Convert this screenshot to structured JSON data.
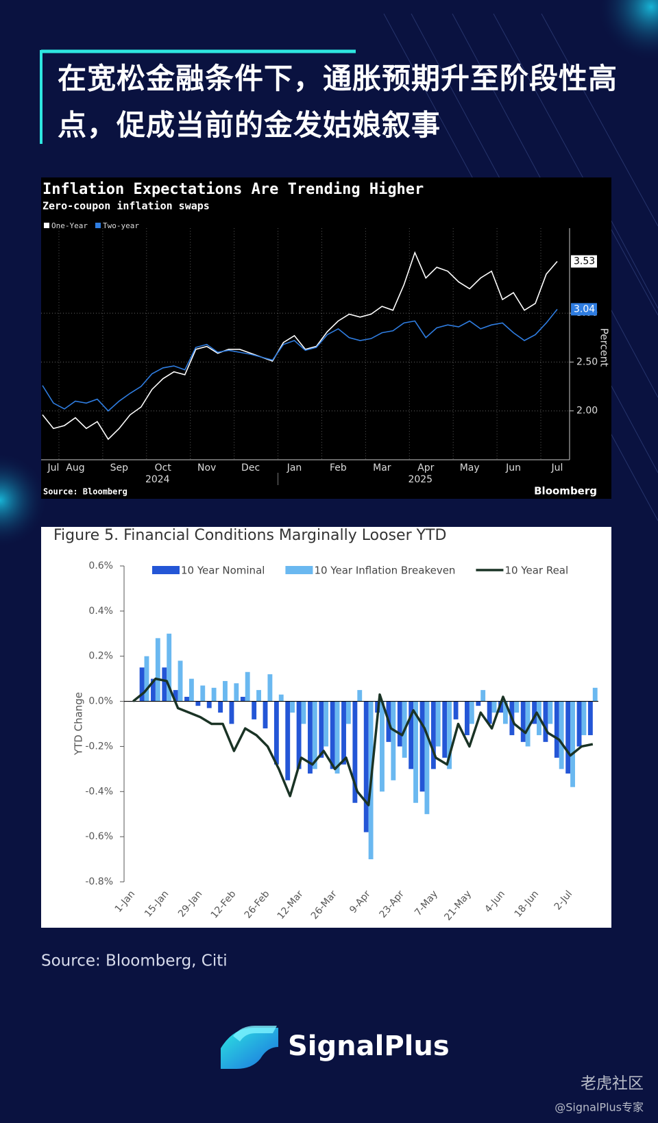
{
  "headline": "在宽松金融条件下，通胀预期升至阶段性高点，促成当前的金发姑娘叙事",
  "chart_data": [
    {
      "type": "line",
      "title": "Inflation Expectations Are Trending Higher",
      "subtitle": "Zero-coupon inflation swaps",
      "y_label": "Percent",
      "categories": [
        "Jul",
        null,
        "Aug",
        null,
        null,
        null,
        "Sep",
        null,
        null,
        null,
        "Oct",
        null,
        null,
        null,
        "Nov",
        null,
        null,
        null,
        "Dec",
        null,
        null,
        null,
        "Jan",
        null,
        null,
        null,
        "Feb",
        null,
        null,
        null,
        "Mar",
        null,
        null,
        null,
        "Apr",
        null,
        null,
        null,
        "May",
        null,
        null,
        null,
        "Jun",
        null,
        null,
        null,
        "Jul",
        null
      ],
      "xgroups": [
        "2024",
        "2025"
      ],
      "series": [
        {
          "name": "One-Year",
          "color": "#ffffff",
          "values": [
            1.96,
            1.82,
            1.85,
            1.93,
            1.82,
            1.89,
            1.71,
            1.82,
            1.96,
            2.04,
            2.22,
            2.33,
            2.4,
            2.37,
            2.63,
            2.66,
            2.59,
            2.63,
            2.63,
            2.59,
            2.55,
            2.51,
            2.7,
            2.77,
            2.63,
            2.66,
            2.81,
            2.92,
            2.99,
            2.96,
            2.99,
            3.07,
            3.03,
            3.29,
            3.62,
            3.36,
            3.47,
            3.43,
            3.32,
            3.25,
            3.36,
            3.43,
            3.14,
            3.21,
            3.03,
            3.1,
            3.4,
            3.53
          ],
          "value_labels": [
            null,
            null,
            null,
            null,
            null,
            null,
            null,
            null,
            null,
            null,
            null,
            null,
            null,
            null,
            null,
            null,
            null,
            null,
            null,
            null,
            null,
            null,
            null,
            null,
            null,
            null,
            null,
            null,
            null,
            null,
            null,
            null,
            null,
            null,
            null,
            null,
            null,
            null,
            null,
            null,
            null,
            null,
            null,
            null,
            null,
            null,
            null,
            "3.53"
          ]
        },
        {
          "name": "Two-year",
          "color": "#2f7de1",
          "values": [
            2.26,
            2.08,
            2.02,
            2.1,
            2.08,
            2.12,
            2.0,
            2.1,
            2.18,
            2.25,
            2.38,
            2.44,
            2.46,
            2.42,
            2.65,
            2.68,
            2.6,
            2.62,
            2.6,
            2.58,
            2.55,
            2.52,
            2.68,
            2.72,
            2.62,
            2.65,
            2.78,
            2.84,
            2.75,
            2.72,
            2.74,
            2.8,
            2.82,
            2.9,
            2.92,
            2.75,
            2.85,
            2.88,
            2.86,
            2.92,
            2.84,
            2.88,
            2.9,
            2.8,
            2.72,
            2.78,
            2.9,
            3.04
          ],
          "value_labels": [
            null,
            null,
            null,
            null,
            null,
            null,
            null,
            null,
            null,
            null,
            null,
            null,
            null,
            null,
            null,
            null,
            null,
            null,
            null,
            null,
            null,
            null,
            null,
            null,
            null,
            null,
            null,
            null,
            null,
            null,
            null,
            null,
            null,
            null,
            null,
            null,
            null,
            null,
            null,
            null,
            null,
            null,
            null,
            null,
            null,
            null,
            null,
            "3.04"
          ]
        }
      ],
      "ylim": [
        1.5,
        3.8
      ],
      "yticks": [
        {
          "value": 2,
          "label": "2.00"
        },
        {
          "value": 2.5,
          "label": "2.50"
        },
        {
          "value": 3,
          "label": "3.00"
        }
      ],
      "grid": true,
      "source": "Source: Bloomberg",
      "brand": "Bloomberg"
    },
    {
      "type": "bar",
      "title": "Figure 5. Financial Conditions Marginally Looser YTD",
      "y_label": "YTD Change",
      "categories": [
        "1-Jan",
        null,
        null,
        "15-Jan",
        null,
        null,
        "29-Jan",
        null,
        null,
        "12-Feb",
        null,
        null,
        "26-Feb",
        null,
        null,
        "12-Mar",
        null,
        null,
        "26-Mar",
        null,
        null,
        "9-Apr",
        null,
        null,
        "23-Apr",
        null,
        null,
        "7-May",
        null,
        null,
        "21-May",
        null,
        null,
        "4-Jun",
        null,
        null,
        "18-Jun",
        null,
        null,
        "2-Jul",
        null,
        null
      ],
      "series": [
        {
          "name": "10 Year Nominal",
          "type": "bar",
          "color": "#2456d6",
          "values": [
            0.0,
            0.15,
            0.1,
            0.15,
            0.05,
            0.02,
            -0.02,
            -0.03,
            -0.05,
            -0.1,
            0.02,
            -0.08,
            -0.12,
            -0.28,
            -0.35,
            -0.3,
            -0.32,
            -0.25,
            -0.3,
            -0.28,
            -0.45,
            -0.58,
            -0.05,
            -0.18,
            -0.2,
            -0.3,
            -0.4,
            -0.3,
            -0.25,
            -0.08,
            -0.15,
            -0.02,
            -0.1,
            -0.05,
            -0.15,
            -0.18,
            -0.1,
            -0.18,
            -0.25,
            -0.32,
            -0.2,
            -0.15
          ]
        },
        {
          "name": "10 Year Inflation Breakeven",
          "type": "bar",
          "color": "#6ab8f0",
          "values": [
            0.0,
            0.2,
            0.28,
            0.3,
            0.18,
            0.1,
            0.07,
            0.06,
            0.09,
            0.08,
            0.13,
            0.05,
            0.12,
            0.03,
            -0.05,
            -0.1,
            -0.3,
            -0.2,
            -0.32,
            -0.1,
            0.05,
            -0.7,
            -0.4,
            -0.35,
            -0.25,
            -0.45,
            -0.5,
            -0.2,
            -0.3,
            0.0,
            -0.1,
            0.05,
            -0.05,
            -0.1,
            -0.05,
            -0.2,
            -0.15,
            -0.1,
            -0.3,
            -0.38,
            -0.15,
            0.06
          ]
        },
        {
          "name": "10 Year Real",
          "type": "line",
          "color": "#1a3325",
          "values": [
            0.0,
            0.04,
            0.1,
            0.09,
            -0.03,
            -0.05,
            -0.07,
            -0.1,
            -0.1,
            -0.22,
            -0.12,
            -0.15,
            -0.2,
            -0.3,
            -0.42,
            -0.25,
            -0.28,
            -0.22,
            -0.3,
            -0.25,
            -0.4,
            -0.46,
            0.03,
            -0.12,
            -0.15,
            -0.04,
            -0.12,
            -0.25,
            -0.28,
            -0.1,
            -0.2,
            -0.05,
            -0.12,
            0.02,
            -0.1,
            -0.14,
            -0.05,
            -0.14,
            -0.17,
            -0.24,
            -0.2,
            -0.19
          ]
        }
      ],
      "ylim": [
        -0.8,
        0.6
      ],
      "yticks": [
        {
          "value": 0.6,
          "label": "0.6%"
        },
        {
          "value": 0.4,
          "label": "0.4%"
        },
        {
          "value": 0.2,
          "label": "0.2%"
        },
        {
          "value": 0,
          "label": "0.0%"
        },
        {
          "value": -0.2,
          "label": "-0.2%"
        },
        {
          "value": -0.4,
          "label": "-0.4%"
        },
        {
          "value": -0.6,
          "label": "-0.6%"
        },
        {
          "value": -0.8,
          "label": "-0.8%"
        }
      ]
    }
  ],
  "source": "Source: Bloomberg, Citi",
  "logo": "SignalPlus",
  "watermark": {
    "name": "老虎社区",
    "handle": "@SignalPlus专家"
  }
}
